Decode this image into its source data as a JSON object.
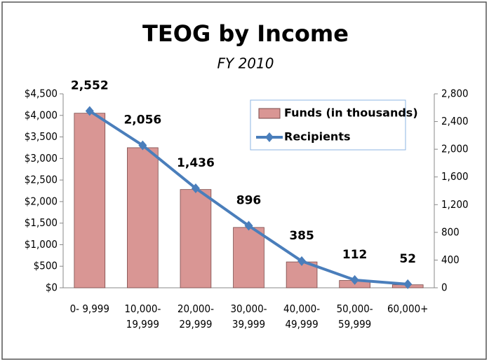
{
  "chart_data": {
    "type": "bar_line",
    "title": "TEOG by Income",
    "subtitle": "FY 2010",
    "categories": [
      "0- 9,999",
      "10,000-\n19,999",
      "20,000-\n29,999",
      "30,000-\n39,999",
      "40,000-\n49,999",
      "50,000-\n59,999",
      "60,000+"
    ],
    "series": [
      {
        "name": "Funds (in thousands)",
        "type": "bar",
        "color": "#d99694",
        "values": [
          4050,
          3250,
          2280,
          1400,
          600,
          170,
          70
        ]
      },
      {
        "name": "Recipients",
        "type": "line",
        "axis": "y2",
        "color": "#4a7ebb",
        "values": [
          2552,
          2056,
          1436,
          896,
          385,
          112,
          52
        ],
        "value_labels": [
          "2,552",
          "2,056",
          "1,436",
          "896",
          "385",
          "112",
          "52"
        ]
      }
    ],
    "ylim": [
      0,
      4500
    ],
    "yticks": [
      {
        "value": 0,
        "label": "$0"
      },
      {
        "value": 500,
        "label": "$500"
      },
      {
        "value": 1000,
        "label": "$1,000"
      },
      {
        "value": 1500,
        "label": "$1,500"
      },
      {
        "value": 2000,
        "label": "$2,000"
      },
      {
        "value": 2500,
        "label": "$2,500"
      },
      {
        "value": 3000,
        "label": "$3,000"
      },
      {
        "value": 3500,
        "label": "$3,500"
      },
      {
        "value": 4000,
        "label": "$4,000"
      },
      {
        "value": 4500,
        "label": "$4,500"
      }
    ],
    "y2lim": [
      0,
      2800
    ],
    "y2ticks": [
      0,
      400,
      800,
      {
        "value": 1200,
        "label": "1,200"
      },
      {
        "value": 1600,
        "label": "1,600"
      },
      {
        "value": 2000,
        "label": "2,000"
      },
      {
        "value": 2400,
        "label": "2,400"
      },
      {
        "value": 2800,
        "label": "2,800"
      }
    ],
    "legend": "top-right"
  }
}
